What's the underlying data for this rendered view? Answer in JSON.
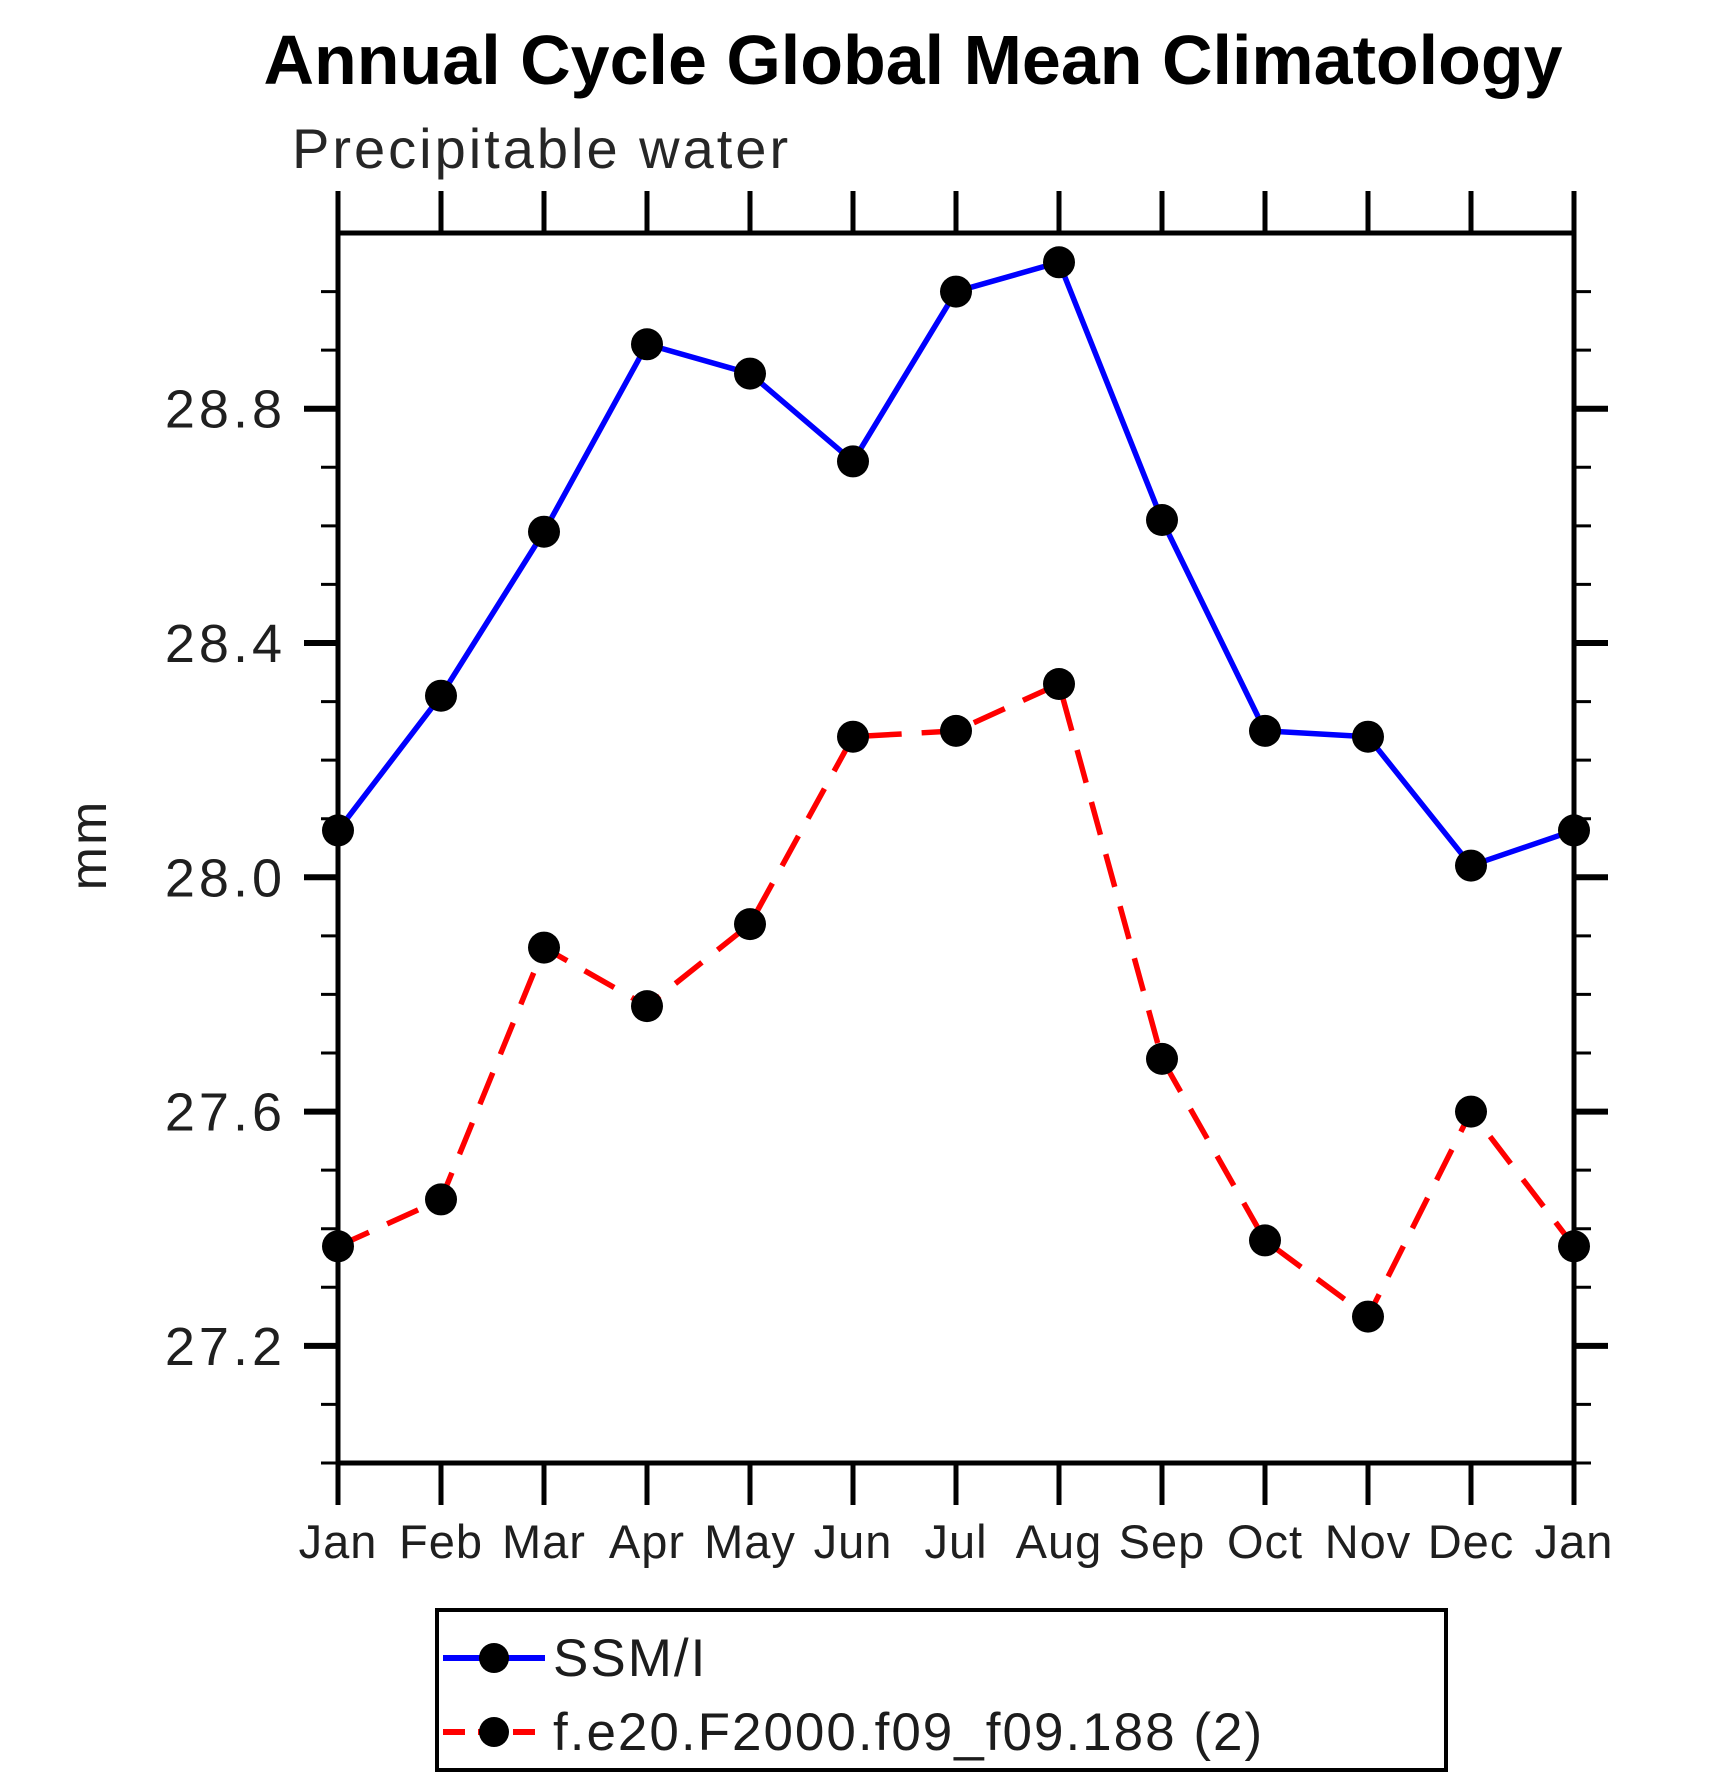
{
  "chart_data": {
    "type": "line",
    "title": "Annual Cycle Global Mean Climatology",
    "subtitle": "Precipitable water",
    "ylabel": "mm",
    "categories": [
      "Jan",
      "Feb",
      "Mar",
      "Apr",
      "May",
      "Jun",
      "Jul",
      "Aug",
      "Sep",
      "Oct",
      "Nov",
      "Dec",
      "Jan"
    ],
    "series": [
      {
        "name": "SSM/I",
        "color": "#0000ff",
        "style": "solid",
        "marker": "filled-circle",
        "values": [
          28.08,
          28.31,
          28.59,
          28.91,
          28.86,
          28.71,
          29.0,
          29.05,
          28.61,
          28.25,
          28.24,
          28.02,
          28.08
        ]
      },
      {
        "name": "f.e20.F2000.f09_f09.188 (2)",
        "color": "#ff0000",
        "style": "dashed",
        "marker": "filled-circle",
        "values": [
          27.37,
          27.45,
          27.88,
          27.78,
          27.92,
          28.24,
          28.25,
          28.33,
          27.69,
          27.38,
          27.25,
          27.6,
          27.37
        ]
      }
    ],
    "marker_color": "#000000",
    "ylim": [
      27.0,
      29.1
    ],
    "y_major_ticks": [
      27.2,
      27.6,
      28.0,
      28.4,
      28.8
    ],
    "y_minor_step": 0.1,
    "grid": false,
    "legend_position": "bottom-left"
  }
}
